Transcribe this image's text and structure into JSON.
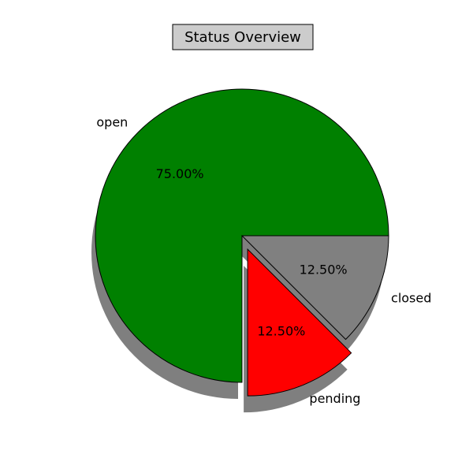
{
  "chart_data": {
    "type": "pie",
    "title": "Status Overview",
    "slices": [
      {
        "label": "open",
        "value": 75.0,
        "pct_label": "75.00%",
        "color": "#008000",
        "exploded": false
      },
      {
        "label": "pending",
        "value": 12.5,
        "pct_label": "12.50%",
        "color": "#ff0000",
        "exploded": true
      },
      {
        "label": "closed",
        "value": 12.5,
        "pct_label": "12.50%",
        "color": "#808080",
        "exploded": false
      }
    ],
    "start_angle": 0,
    "direction": "counterclockwise",
    "shadow": true,
    "title_box_color": "#cccccc"
  }
}
